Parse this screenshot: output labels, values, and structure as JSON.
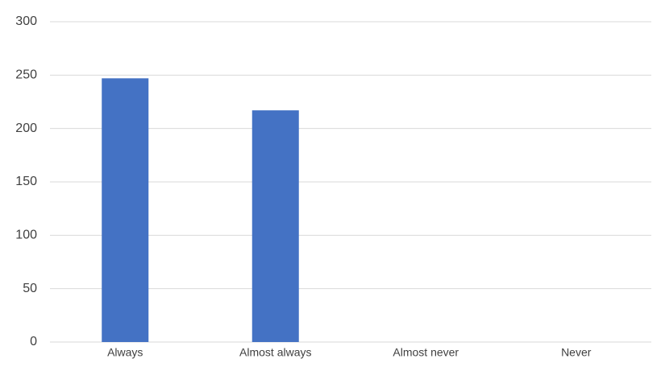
{
  "chart_data": {
    "type": "bar",
    "categories": [
      "Always",
      "Almost always",
      "Almost never",
      "Never"
    ],
    "values": [
      247,
      217,
      0,
      0
    ],
    "color": "#4472c4",
    "ylim": [
      0,
      300
    ],
    "yticks": [
      0,
      50,
      100,
      150,
      200,
      250,
      300
    ],
    "grid": true
  }
}
